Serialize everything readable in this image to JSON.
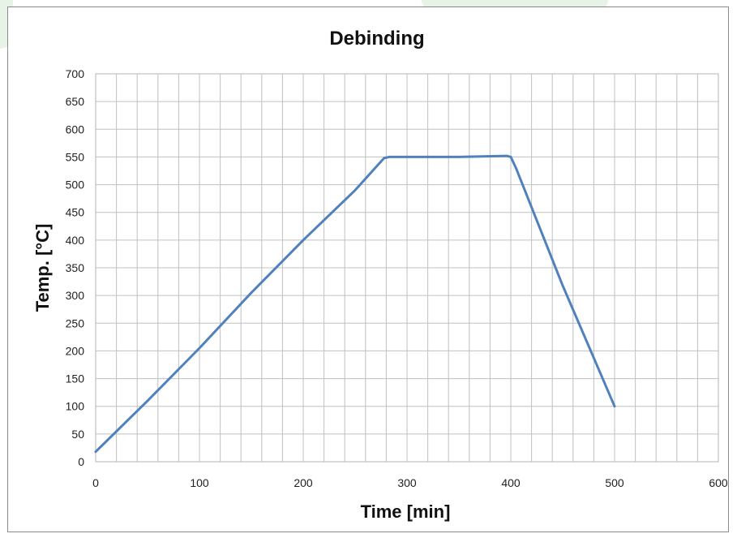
{
  "colors": {
    "series": "#4f81bd",
    "grid": "#c0c0c0",
    "frame": "#8a8a8a",
    "decor": "#e6f3e6"
  },
  "chart_data": {
    "type": "line",
    "title": "Debinding",
    "xlabel": "Time [min]",
    "ylabel": "Temp. [°C]",
    "xlim": [
      0,
      600
    ],
    "ylim": [
      0,
      700
    ],
    "x_ticks": [
      0,
      100,
      200,
      300,
      400,
      500,
      600
    ],
    "y_ticks": [
      0,
      50,
      100,
      150,
      200,
      250,
      300,
      350,
      400,
      450,
      500,
      550,
      600,
      650,
      700
    ],
    "grid": true,
    "x_minor_step": 20,
    "legend": "none",
    "series": [
      {
        "x": [
          0,
          50,
          100,
          150,
          200,
          250,
          278,
          283,
          300,
          350,
          396,
          400,
          405,
          450,
          500
        ],
        "y": [
          18,
          110,
          205,
          305,
          400,
          490,
          548,
          550,
          550,
          550,
          552,
          550,
          530,
          318,
          100
        ]
      }
    ]
  }
}
